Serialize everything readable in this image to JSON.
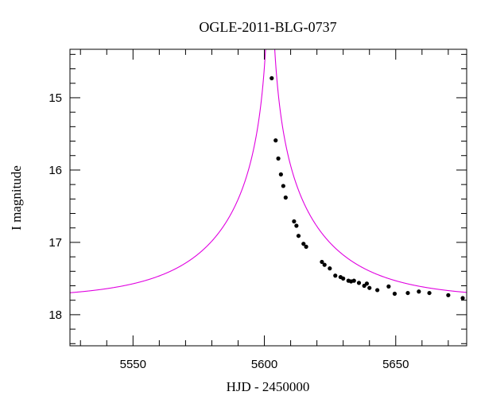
{
  "chart_data": {
    "type": "scatter",
    "title": "OGLE-2011-BLG-0737",
    "xlabel": "HJD - 2450000",
    "ylabel": "I magnitude",
    "xlim": [
      5526,
      5677
    ],
    "ylim": [
      18.43,
      14.33
    ],
    "y_inverted": true,
    "grid": false,
    "x_ticks": {
      "major": [
        5550,
        5600,
        5650
      ],
      "labels": [
        "5550",
        "5600",
        "5650"
      ],
      "minor_step": 10
    },
    "y_ticks": {
      "major": [
        15,
        16,
        17,
        18
      ],
      "labels": [
        "15",
        "16",
        "17",
        "18"
      ],
      "minor_step": 0.2
    },
    "colors": {
      "model": "#e000e0",
      "points": "#000000",
      "frame": "#000000"
    },
    "model": {
      "name": "",
      "t0": 5602.2,
      "u0": 0.0035,
      "tE": 42,
      "base_mag": 17.78,
      "x_range": [
        5526,
        5677
      ]
    },
    "series": [
      {
        "name": "",
        "points": [
          [
            5602.8,
            14.73
          ],
          [
            5604.3,
            15.59
          ],
          [
            5605.3,
            15.84
          ],
          [
            5606.3,
            16.06
          ],
          [
            5607.2,
            16.22
          ],
          [
            5608.1,
            16.38
          ],
          [
            5611.3,
            16.71
          ],
          [
            5612.2,
            16.77
          ],
          [
            5613.0,
            16.91
          ],
          [
            5614.9,
            17.02
          ],
          [
            5615.9,
            17.06
          ],
          [
            5621.9,
            17.27
          ],
          [
            5622.9,
            17.31
          ],
          [
            5624.9,
            17.36
          ],
          [
            5627.0,
            17.46
          ],
          [
            5629.0,
            17.48
          ],
          [
            5630.0,
            17.5
          ],
          [
            5632.0,
            17.53
          ],
          [
            5633.0,
            17.54
          ],
          [
            5634.1,
            17.53
          ],
          [
            5636.0,
            17.56
          ],
          [
            5638.0,
            17.6
          ],
          [
            5639.0,
            17.57
          ],
          [
            5640.0,
            17.63
          ],
          [
            5643.0,
            17.66
          ],
          [
            5647.3,
            17.61
          ],
          [
            5649.6,
            17.71
          ],
          [
            5654.6,
            17.7
          ],
          [
            5658.8,
            17.68
          ],
          [
            5662.8,
            17.7
          ],
          [
            5670.0,
            17.73
          ],
          [
            5675.5,
            17.77
          ]
        ]
      }
    ]
  }
}
